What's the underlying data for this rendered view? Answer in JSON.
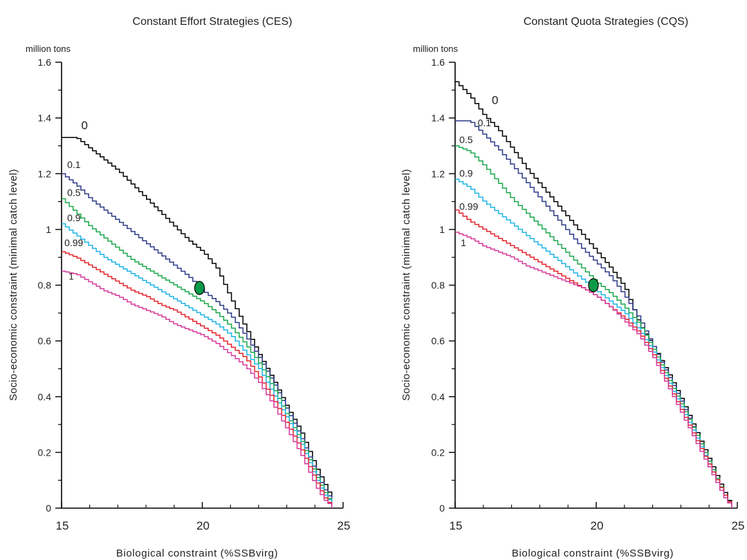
{
  "chart_data": [
    {
      "type": "line",
      "title": "Constant Effort Strategies (CES)",
      "unit_label": "million tons",
      "xlabel": "Biological constraint (%SSBvirg)",
      "ylabel": "Socio-economic constraint (minimal catch level)",
      "xlim": [
        15,
        25
      ],
      "ylim": [
        0,
        1.6
      ],
      "x_ticks": [
        "15",
        "20",
        "25"
      ],
      "y_ticks": [
        "0",
        "0.2",
        "0.4",
        "0.6",
        "0.8",
        "1",
        "1.2",
        "1.4",
        "1.6"
      ],
      "grid": false,
      "stepped": true,
      "colors": {
        "0": "#000000",
        "0.1": "#2e3a87",
        "0.5": "#1aa84c",
        "0.9": "#1fb4e6",
        "0.99": "#e3242b",
        "1": "#d63a9a"
      },
      "marker": {
        "x": 19.9,
        "y": 0.79,
        "color": "#0a9a48"
      },
      "series": [
        {
          "name": "0",
          "x": [
            15,
            15.5,
            16,
            16.5,
            17,
            17.5,
            18,
            18.5,
            19,
            19.5,
            20,
            20.5,
            21,
            21.5,
            22,
            22.5,
            23,
            23.5,
            24,
            24.3,
            24.55,
            24.6
          ],
          "y": [
            1.33,
            1.33,
            1.29,
            1.25,
            1.21,
            1.16,
            1.11,
            1.06,
            1.01,
            0.96,
            0.92,
            0.86,
            0.75,
            0.65,
            0.55,
            0.46,
            0.36,
            0.27,
            0.15,
            0.09,
            0.04,
            0.0
          ]
        },
        {
          "name": "0.1",
          "x": [
            15,
            15.5,
            16,
            16.5,
            17,
            17.5,
            18,
            18.5,
            19,
            19.5,
            20,
            20.5,
            21,
            21.5,
            22,
            22.5,
            23,
            23.5,
            24,
            24.3,
            24.55,
            24.6
          ],
          "y": [
            1.2,
            1.16,
            1.11,
            1.07,
            1.03,
            0.99,
            0.95,
            0.91,
            0.87,
            0.83,
            0.78,
            0.74,
            0.69,
            0.62,
            0.54,
            0.45,
            0.35,
            0.25,
            0.13,
            0.07,
            0.03,
            0.0
          ]
        },
        {
          "name": "0.5",
          "x": [
            15,
            15.5,
            16,
            16.5,
            17,
            17.5,
            18,
            18.5,
            19,
            19.5,
            20,
            20.5,
            21,
            21.5,
            22,
            22.5,
            23,
            23.5,
            24,
            24.3,
            24.55,
            24.6
          ],
          "y": [
            1.11,
            1.06,
            1.01,
            0.97,
            0.93,
            0.89,
            0.86,
            0.83,
            0.8,
            0.77,
            0.74,
            0.7,
            0.65,
            0.59,
            0.52,
            0.43,
            0.33,
            0.24,
            0.12,
            0.06,
            0.02,
            0.0
          ]
        },
        {
          "name": "0.9",
          "x": [
            15,
            15.5,
            16,
            16.5,
            17,
            17.5,
            18,
            18.5,
            19,
            19.5,
            20,
            20.5,
            21,
            21.5,
            22,
            22.5,
            23,
            23.5,
            24,
            24.3,
            24.55,
            24.6
          ],
          "y": [
            1.02,
            0.98,
            0.94,
            0.9,
            0.87,
            0.84,
            0.81,
            0.78,
            0.75,
            0.72,
            0.69,
            0.66,
            0.62,
            0.56,
            0.5,
            0.41,
            0.32,
            0.23,
            0.11,
            0.05,
            0.02,
            0.0
          ]
        },
        {
          "name": "0.99",
          "x": [
            15,
            15.5,
            16,
            16.5,
            17,
            17.5,
            18,
            18.5,
            19,
            19.5,
            20,
            20.5,
            21,
            21.5,
            22,
            22.5,
            23,
            23.5,
            24,
            24.3,
            24.55,
            24.6
          ],
          "y": [
            0.92,
            0.9,
            0.87,
            0.84,
            0.81,
            0.78,
            0.76,
            0.73,
            0.71,
            0.68,
            0.65,
            0.62,
            0.58,
            0.54,
            0.47,
            0.39,
            0.3,
            0.21,
            0.1,
            0.04,
            0.01,
            0.0
          ]
        },
        {
          "name": "1",
          "x": [
            15,
            15.5,
            16,
            16.5,
            17,
            17.5,
            18,
            18.5,
            19,
            19.5,
            20,
            20.5,
            21,
            21.5,
            22,
            22.5,
            23,
            23.5,
            24,
            24.3,
            24.55,
            24.6
          ],
          "y": [
            0.85,
            0.84,
            0.81,
            0.78,
            0.76,
            0.73,
            0.71,
            0.69,
            0.66,
            0.64,
            0.62,
            0.59,
            0.55,
            0.51,
            0.45,
            0.37,
            0.28,
            0.19,
            0.08,
            0.03,
            0.01,
            0.0
          ]
        }
      ],
      "series_labels": [
        {
          "text": "0",
          "x": 15.7,
          "y": 1.36,
          "big": true
        },
        {
          "text": "0.1",
          "x": 15.2,
          "y": 1.22
        },
        {
          "text": "0.5",
          "x": 15.2,
          "y": 1.12
        },
        {
          "text": "0.9",
          "x": 15.2,
          "y": 1.03
        },
        {
          "text": "0.99",
          "x": 15.1,
          "y": 0.94
        },
        {
          "text": "1",
          "x": 15.25,
          "y": 0.82
        }
      ]
    },
    {
      "type": "line",
      "title": "Constant Quota Strategies (CQS)",
      "unit_label": "million tons",
      "xlabel": "Biological constraint (%SSBvirg)",
      "ylabel": "Socio-economic constraint (minimal catch level)",
      "xlim": [
        15,
        25
      ],
      "ylim": [
        0,
        1.6
      ],
      "x_ticks": [
        "15",
        "20",
        "25"
      ],
      "y_ticks": [
        "0",
        "0.2",
        "0.4",
        "0.6",
        "0.8",
        "1",
        "1.2",
        "1.4",
        "1.6"
      ],
      "grid": false,
      "stepped": true,
      "colors": {
        "0": "#000000",
        "0.1": "#2e3a87",
        "0.5": "#1aa84c",
        "0.9": "#1fb4e6",
        "0.99": "#e3242b",
        "1": "#d63a9a"
      },
      "marker": {
        "x": 19.9,
        "y": 0.8,
        "color": "#0a9a48"
      },
      "series": [
        {
          "name": "0",
          "x": [
            15,
            15.5,
            16,
            16.5,
            17,
            17.5,
            18,
            18.5,
            19,
            19.5,
            20,
            20.5,
            21,
            21.5,
            22,
            22.5,
            23,
            23.5,
            24,
            24.5,
            24.8
          ],
          "y": [
            1.53,
            1.48,
            1.41,
            1.36,
            1.29,
            1.22,
            1.16,
            1.1,
            1.04,
            0.98,
            0.92,
            0.86,
            0.79,
            0.66,
            0.58,
            0.49,
            0.39,
            0.28,
            0.17,
            0.06,
            0.0
          ]
        },
        {
          "name": "0.1",
          "x": [
            15,
            15.5,
            16,
            16.5,
            17,
            17.5,
            18,
            18.5,
            19,
            19.5,
            20,
            20.5,
            21,
            21.5,
            22,
            22.5,
            23,
            23.5,
            24,
            24.5,
            24.8
          ],
          "y": [
            1.39,
            1.39,
            1.34,
            1.29,
            1.23,
            1.17,
            1.11,
            1.05,
            0.99,
            0.93,
            0.88,
            0.83,
            0.76,
            0.68,
            0.58,
            0.48,
            0.38,
            0.27,
            0.16,
            0.05,
            0.0
          ]
        },
        {
          "name": "0.5",
          "x": [
            15,
            15.5,
            16,
            16.5,
            17,
            17.5,
            18,
            18.5,
            19,
            19.5,
            20,
            20.5,
            21,
            21.5,
            22,
            22.5,
            23,
            23.5,
            24,
            24.5,
            24.8
          ],
          "y": [
            1.3,
            1.28,
            1.23,
            1.17,
            1.11,
            1.06,
            1.01,
            0.96,
            0.91,
            0.86,
            0.81,
            0.77,
            0.72,
            0.66,
            0.57,
            0.47,
            0.37,
            0.27,
            0.16,
            0.05,
            0.0
          ]
        },
        {
          "name": "0.9",
          "x": [
            15,
            15.5,
            16,
            16.5,
            17,
            17.5,
            18,
            18.5,
            19,
            19.5,
            20,
            20.5,
            21,
            21.5,
            22,
            22.5,
            23,
            23.5,
            24,
            24.5,
            24.8
          ],
          "y": [
            1.18,
            1.15,
            1.1,
            1.06,
            1.02,
            0.98,
            0.94,
            0.9,
            0.86,
            0.82,
            0.78,
            0.74,
            0.7,
            0.64,
            0.56,
            0.46,
            0.36,
            0.26,
            0.15,
            0.05,
            0.0
          ]
        },
        {
          "name": "0.99",
          "x": [
            15,
            15.5,
            16,
            16.5,
            17,
            17.5,
            18,
            18.5,
            19,
            19.5,
            20,
            20.5,
            21,
            21.5,
            22,
            22.5,
            23,
            23.5,
            24,
            24.5,
            24.8
          ],
          "y": [
            1.07,
            1.03,
            1.0,
            0.97,
            0.94,
            0.91,
            0.88,
            0.85,
            0.82,
            0.79,
            0.76,
            0.72,
            0.68,
            0.63,
            0.55,
            0.45,
            0.35,
            0.25,
            0.15,
            0.05,
            0.0
          ]
        },
        {
          "name": "1",
          "x": [
            15,
            15.5,
            16,
            16.5,
            17,
            17.5,
            18,
            18.5,
            19,
            19.5,
            20,
            20.5,
            21,
            21.5,
            22,
            22.5,
            23,
            23.5,
            24,
            24.5,
            24.8
          ],
          "y": [
            0.99,
            0.97,
            0.94,
            0.92,
            0.9,
            0.87,
            0.85,
            0.83,
            0.81,
            0.79,
            0.76,
            0.72,
            0.67,
            0.62,
            0.54,
            0.44,
            0.34,
            0.24,
            0.14,
            0.04,
            0.0
          ]
        }
      ],
      "series_labels": [
        {
          "text": "0",
          "x": 16.3,
          "y": 1.45,
          "big": true
        },
        {
          "text": "0.1",
          "x": 15.8,
          "y": 1.37
        },
        {
          "text": "0.5",
          "x": 15.15,
          "y": 1.31
        },
        {
          "text": "0.9",
          "x": 15.15,
          "y": 1.19
        },
        {
          "text": "0.99",
          "x": 15.15,
          "y": 1.07
        },
        {
          "text": "1",
          "x": 15.2,
          "y": 0.94
        }
      ]
    }
  ]
}
